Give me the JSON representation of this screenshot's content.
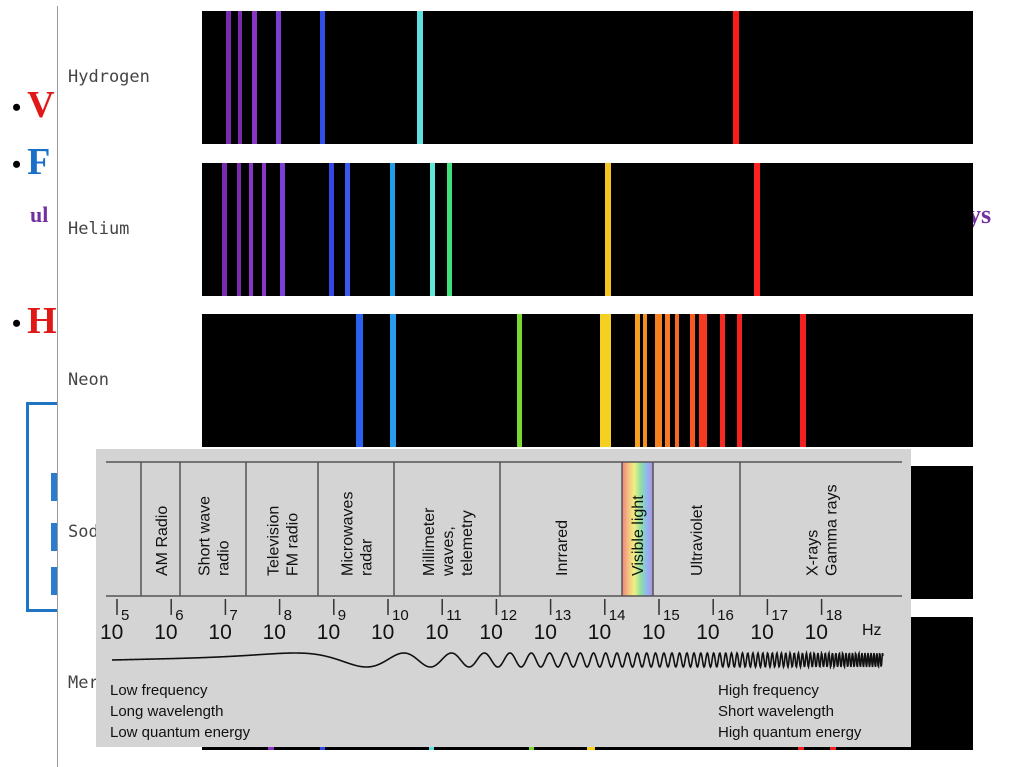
{
  "slide": {
    "bullets": [
      {
        "text": "V",
        "color": "#e01818"
      },
      {
        "text": "F",
        "color": "#1a6fc8"
      },
      {
        "text": "H",
        "color": "#e01818"
      }
    ],
    "sub_left": "ul",
    "sub_right": "ys"
  },
  "spectra": {
    "elements": [
      {
        "name": "Hydrogen",
        "lines": [
          {
            "x": 24,
            "color": "#7b2bb0",
            "w": 5
          },
          {
            "x": 36,
            "color": "#7b2bb0",
            "w": 4
          },
          {
            "x": 50,
            "color": "#8a35c8",
            "w": 5
          },
          {
            "x": 74,
            "color": "#7c3fd6",
            "w": 5
          },
          {
            "x": 118,
            "color": "#2f4fe6",
            "w": 5
          },
          {
            "x": 215,
            "color": "#5ee0e0",
            "w": 6
          },
          {
            "x": 531,
            "color": "#ff1a1a",
            "w": 6
          }
        ]
      },
      {
        "name": "Helium",
        "lines": [
          {
            "x": 20,
            "color": "#7b2bb0",
            "w": 5
          },
          {
            "x": 35,
            "color": "#7b2bb0",
            "w": 4
          },
          {
            "x": 47,
            "color": "#8a35c8",
            "w": 4
          },
          {
            "x": 60,
            "color": "#8a35c8",
            "w": 4
          },
          {
            "x": 78,
            "color": "#7c3fd6",
            "w": 5
          },
          {
            "x": 127,
            "color": "#3448e8",
            "w": 5
          },
          {
            "x": 143,
            "color": "#3a58ee",
            "w": 5
          },
          {
            "x": 188,
            "color": "#1f9fe8",
            "w": 5
          },
          {
            "x": 228,
            "color": "#5ee8d8",
            "w": 5
          },
          {
            "x": 245,
            "color": "#3de07a",
            "w": 5
          },
          {
            "x": 403,
            "color": "#f2c522",
            "w": 6
          },
          {
            "x": 552,
            "color": "#ff2020",
            "w": 6
          }
        ]
      },
      {
        "name": "Neon",
        "lines": [
          {
            "x": 154,
            "color": "#2a62f0",
            "w": 7
          },
          {
            "x": 188,
            "color": "#2a9cf0",
            "w": 6
          },
          {
            "x": 315,
            "color": "#7ad833",
            "w": 5
          },
          {
            "x": 398,
            "color": "#f5d020",
            "w": 11
          },
          {
            "x": 433,
            "color": "#f5a020",
            "w": 5
          },
          {
            "x": 441,
            "color": "#f59020",
            "w": 4
          },
          {
            "x": 453,
            "color": "#f58020",
            "w": 7
          },
          {
            "x": 463,
            "color": "#f57a20",
            "w": 5
          },
          {
            "x": 473,
            "color": "#f56a20",
            "w": 4
          },
          {
            "x": 488,
            "color": "#f55a20",
            "w": 5
          },
          {
            "x": 497,
            "color": "#f53a20",
            "w": 8
          },
          {
            "x": 518,
            "color": "#f52a20",
            "w": 5
          },
          {
            "x": 535,
            "color": "#f52020",
            "w": 5
          },
          {
            "x": 598,
            "color": "#f22020",
            "w": 6
          }
        ]
      },
      {
        "name": "Sodium",
        "lines": []
      },
      {
        "name": "Mercury",
        "lines": [
          {
            "x": 66,
            "color": "#8a35c8",
            "w": 6
          },
          {
            "x": 118,
            "color": "#3448e8",
            "w": 5
          },
          {
            "x": 227,
            "color": "#5ee0e0",
            "w": 5
          },
          {
            "x": 327,
            "color": "#7ad833",
            "w": 5
          },
          {
            "x": 385,
            "color": "#f5d020",
            "w": 8
          },
          {
            "x": 596,
            "color": "#f52020",
            "w": 6
          },
          {
            "x": 628,
            "color": "#f52020",
            "w": 6
          }
        ]
      }
    ]
  },
  "em_spectrum": {
    "bands": [
      {
        "label": "AM Radio"
      },
      {
        "label": "Short wave radio"
      },
      {
        "label": "Television FM radio"
      },
      {
        "label": "Microwaves radar"
      },
      {
        "label": "Millimeter waves, telemetry"
      },
      {
        "label": "Inrrared"
      },
      {
        "label": "Visible light"
      },
      {
        "label": "Ultraviolet"
      },
      {
        "label": "X-rays Gamma rays"
      }
    ],
    "band_lines": [
      [
        "AM Radio"
      ],
      [
        "Short wave",
        "radio"
      ],
      [
        "Television",
        "FM radio"
      ],
      [
        "Microwaves",
        "radar"
      ],
      [
        "Millimeter",
        "waves,",
        "telemetry"
      ],
      [
        "Inrrared"
      ],
      [
        "Visible light"
      ],
      [
        "Ultraviolet"
      ],
      [
        "X-rays",
        "Gamma rays"
      ]
    ],
    "exponents": [
      "5",
      "6",
      "7",
      "8",
      "9",
      "10",
      "11",
      "12",
      "13",
      "14",
      "15",
      "16",
      "17",
      "18"
    ],
    "base": "10",
    "unit": "Hz",
    "left_notes": [
      "Low frequency",
      "Long wavelength",
      "Low quantum energy"
    ],
    "right_notes": [
      "High frequency",
      "Short wavelength",
      "High quantum energy"
    ],
    "visible_gradient": [
      "#f08080",
      "#f4c080",
      "#f0f080",
      "#90e0a0",
      "#90b8f0",
      "#b090e0"
    ]
  }
}
